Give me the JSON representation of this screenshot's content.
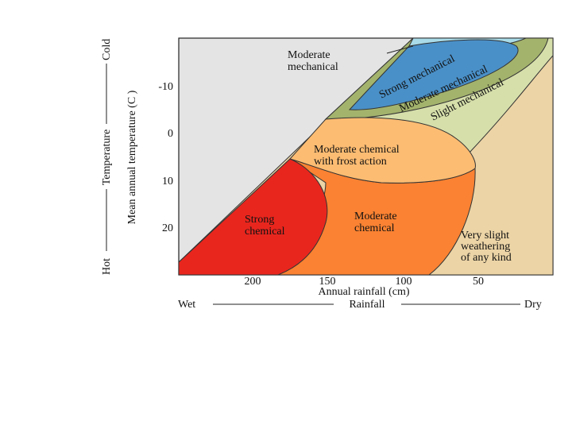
{
  "chart_data": {
    "type": "region-diagram",
    "xlabel": "Annual rainfall (cm)",
    "ylabel": "Mean annual temperature (C )",
    "x_ticks": [
      "200",
      "150",
      "100",
      "50"
    ],
    "y_ticks": [
      "-10",
      "0",
      "10",
      "20"
    ],
    "x_gradient": {
      "left": "Wet",
      "center": "Rainfall",
      "right": "Dry"
    },
    "y_gradient": {
      "bottom": "Hot",
      "center": "Temperature",
      "top": "Cold"
    },
    "regions": [
      {
        "name": "Moderate mechanical",
        "lines": [
          "Moderate",
          "mechanical"
        ],
        "color": "#a9dbe8"
      },
      {
        "name": "Strong mechanical",
        "lines": [
          "Strong mechanical"
        ],
        "color": "#4a90c8"
      },
      {
        "name": "Moderate mechanical",
        "lines": [
          "Moderate mechanical"
        ],
        "color": "#a3b36c"
      },
      {
        "name": "Slight mechanical",
        "lines": [
          "Slight mechanical"
        ],
        "color": "#d6dfaa"
      },
      {
        "name": "Moderate chemical with frost action",
        "lines": [
          "Moderate chemical",
          "with frost action"
        ],
        "color": "#fcbc72"
      },
      {
        "name": "Strong chemical",
        "lines": [
          "Strong",
          "chemical"
        ],
        "color": "#e8261e"
      },
      {
        "name": "Moderate chemical",
        "lines": [
          "Moderate",
          "chemical"
        ],
        "color": "#fa8232"
      },
      {
        "name": "Very slight weathering of any kind",
        "lines": [
          "Very slight",
          "weathering",
          "of any kind"
        ],
        "color": "#ecd4a6"
      }
    ],
    "colors": {
      "frame_background": "#e4e4e4",
      "outline": "#222222"
    }
  }
}
